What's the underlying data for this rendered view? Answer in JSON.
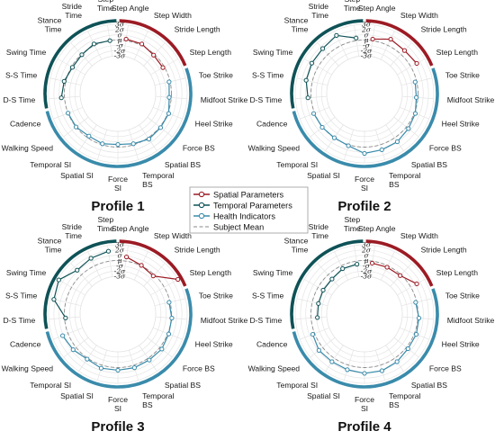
{
  "chart_data": {
    "type": "radar",
    "axes": [
      "Step Angle",
      "Step Width",
      "Stride Length",
      "Step Length",
      "Toe Strike",
      "Midfoot Strike",
      "Heel Strike",
      "Force BS",
      "Spatial BS",
      "Temporal BS",
      "Force SI",
      "Spatial SI",
      "Temporal SI",
      "Walking Speed",
      "Cadence",
      "D-S Time",
      "S-S Time",
      "Swing Time",
      "Stance Time",
      "Stride Time",
      "Step Time"
    ],
    "axis_label_lines": [
      [
        "Step Angle"
      ],
      [
        "Step Width"
      ],
      [
        "Stride Length"
      ],
      [
        "Step Length"
      ],
      [
        "Toe Strike"
      ],
      [
        "Midfoot Strike"
      ],
      [
        "Heel Strike"
      ],
      [
        "Force BS"
      ],
      [
        "Spatial BS"
      ],
      [
        "Temporal",
        "BS"
      ],
      [
        "Force",
        "SI"
      ],
      [
        "Spatial SI"
      ],
      [
        "Temporal SI"
      ],
      [
        "Walking Speed"
      ],
      [
        "Cadence"
      ],
      [
        "D-S Time"
      ],
      [
        "S-S Time"
      ],
      [
        "Swing Time"
      ],
      [
        "Stance",
        "Time"
      ],
      [
        "Stride",
        "Time"
      ],
      [
        "Step",
        "Time"
      ]
    ],
    "radial_ticks": [
      "3σ",
      "2σ",
      "σ",
      "μ",
      "-σ",
      "-2σ",
      "-3σ"
    ],
    "rlim": [
      -3,
      3
    ],
    "categories": [
      {
        "name": "Spatial Parameters",
        "color": "#9c1b24",
        "axes": [
          0,
          1,
          2,
          3
        ]
      },
      {
        "name": "Temporal Parameters",
        "color": "#0e5256",
        "axes": [
          15,
          16,
          17,
          18,
          19,
          20
        ]
      },
      {
        "name": "Health Indicators",
        "color": "#3a8bab",
        "axes": [
          4,
          5,
          6,
          7,
          8,
          9,
          10,
          11,
          12,
          13,
          14
        ]
      }
    ],
    "legend": [
      "Spatial Parameters",
      "Temporal Parameters",
      "Health Indicators",
      "Subject Mean"
    ],
    "legend_placement": "center",
    "subject_mean_value": 0,
    "profiles": [
      {
        "title": "Profile 1",
        "spatial": [
          0.3,
          0.3,
          -0.2,
          -0.3
        ],
        "temporal": [
          0.6,
          0.3,
          -0.2,
          -0.1,
          0.3,
          0.0
        ],
        "health": [
          -0.2,
          -0.4,
          0.2,
          0.2,
          0.3,
          -0.2,
          -0.5,
          -0.2,
          -0.4,
          0.0,
          0.0
        ]
      },
      {
        "title": "Profile 2",
        "spatial": [
          0.3,
          1.3,
          1.0,
          1.3
        ],
        "temporal": [
          0.6,
          1.2,
          1.4,
          1.5,
          2.1,
          0.5
        ],
        "health": [
          -0.3,
          -0.3,
          0.2,
          0.5,
          0.9,
          1.0,
          1.2,
          0.2,
          0.0,
          0.1,
          0.2
        ]
      },
      {
        "title": "Profile 3",
        "spatial": [
          0.8,
          0.1,
          -0.3,
          3.0
        ],
        "temporal": [
          -0.2,
          2.3,
          2.8,
          1.2,
          1.6,
          1.9
        ],
        "health": [
          -0.2,
          0.1,
          0.2,
          0.5,
          0.4,
          0.5,
          0.5,
          0.6,
          0.2,
          0.7,
          1.1
        ]
      },
      {
        "title": "Profile 4",
        "spatial": [
          -0.4,
          -0.3,
          -0.2,
          1.3
        ],
        "temporal": [
          -1.2,
          -1.2,
          -1.1,
          -1.1,
          -0.6,
          -0.6
        ],
        "health": [
          -0.2,
          0.2,
          0.4,
          0.4,
          0.8,
          1.1,
          1.1,
          0.9,
          0.8,
          0.9,
          0.4
        ]
      }
    ]
  }
}
